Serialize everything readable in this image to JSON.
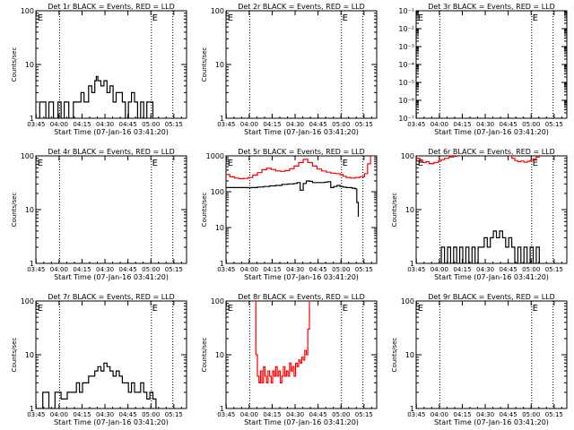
{
  "figure": {
    "xtick_labels": [
      "03:45",
      "04:00",
      "04:15",
      "04:30",
      "04:45",
      "05:00",
      "05:15"
    ],
    "xlabel": "Start Time (07-Jan-16 03:41:20)",
    "ylabel": "Counts/sec"
  },
  "chart_data": [
    {
      "type": "line",
      "title": "Det 1r BLACK = Events, RED = LLD",
      "xlabel": "Start Time (07-Jan-16 03:41:20)",
      "ylabel": "Counts/sec",
      "ylog": true,
      "ylim": [
        1,
        100
      ],
      "ytick_labels": [
        "1",
        "10",
        "100"
      ],
      "xlim_min": [
        3.5,
        102
      ],
      "vlines_min": [
        19,
        79,
        93
      ],
      "markers": [
        {
          "label": "E",
          "x_min": 4.5
        },
        {
          "label": "E",
          "x_min": 79.5
        }
      ],
      "series": [
        {
          "color": "#000000",
          "x_min": [
            3.5,
            6,
            10,
            12,
            15,
            18,
            20,
            22,
            25,
            28,
            30,
            33,
            35,
            38,
            40,
            42,
            43,
            44,
            46,
            48,
            50,
            52,
            54,
            56,
            58,
            60,
            62,
            64,
            66,
            68,
            70,
            72,
            74,
            76,
            78,
            80
          ],
          "y": [
            1,
            2,
            1,
            2,
            1,
            2,
            1,
            2,
            1,
            2,
            2,
            3,
            2,
            4,
            3,
            5,
            6,
            5,
            4,
            5,
            3,
            4,
            2,
            3,
            3,
            2,
            1,
            2,
            3,
            2,
            1,
            2,
            1,
            2,
            2,
            1
          ]
        }
      ]
    },
    {
      "type": "line",
      "title": "Det 2r BLACK = Events, RED = LLD",
      "xlabel": "Start Time (07-Jan-16 03:41:20)",
      "ylabel": "Counts/sec",
      "ylog": true,
      "ylim": [
        1,
        100
      ],
      "ytick_labels": [
        "1",
        "10",
        "100"
      ],
      "xlim_min": [
        3.5,
        102
      ],
      "vlines_min": [
        19,
        79,
        93
      ],
      "markers": [
        {
          "label": "E",
          "x_min": 4.5
        },
        {
          "label": "E",
          "x_min": 79.5
        }
      ],
      "series": []
    },
    {
      "type": "line",
      "title": "Det 3r BLACK = Events, RED = LLD",
      "xlabel": "Start Time (07-Jan-16 03:41:20)",
      "ylabel": "",
      "ylog": true,
      "ylim": [
        1e-07,
        0.1
      ],
      "ytick_labels": [
        "10⁻⁷",
        "10⁻⁶",
        "10⁻⁵",
        "10⁻⁴",
        "10⁻³",
        "10⁻²",
        "10⁻¹"
      ],
      "xlim_min": [
        3.5,
        102
      ],
      "vlines_min": [
        19,
        79,
        93
      ],
      "markers": [
        {
          "label": "E",
          "x_min": 4.5
        },
        {
          "label": "E",
          "x_min": 79.5
        }
      ],
      "series": []
    },
    {
      "type": "line",
      "title": "Det 4r BLACK = Events, RED = LLD",
      "xlabel": "Start Time (07-Jan-16 03:41:20)",
      "ylabel": "Counts/sec",
      "ylog": true,
      "ylim": [
        1,
        100
      ],
      "ytick_labels": [
        "1",
        "10",
        "100"
      ],
      "xlim_min": [
        3.5,
        102
      ],
      "vlines_min": [
        19,
        79,
        93
      ],
      "markers": [
        {
          "label": "E",
          "x_min": 4.5
        },
        {
          "label": "E",
          "x_min": 79.5
        }
      ],
      "series": []
    },
    {
      "type": "line",
      "title": "Det 5r BLACK = Events, RED = LLD",
      "xlabel": "Start Time (07-Jan-16 03:41:20)",
      "ylabel": "Counts/sec",
      "ylog": true,
      "ylim": [
        1,
        1000
      ],
      "ytick_labels": [
        "1",
        "10",
        "100",
        "1000"
      ],
      "xlim_min": [
        3.5,
        102
      ],
      "vlines_min": [
        19,
        79,
        93
      ],
      "markers": [
        {
          "label": "E",
          "x_min": 4.5
        },
        {
          "label": "E",
          "x_min": 79.5
        }
      ],
      "series": [
        {
          "color": "#ff0000",
          "x_min": [
            3.5,
            6,
            9,
            12,
            15,
            18,
            21,
            24,
            27,
            30,
            33,
            36,
            39,
            42,
            45,
            48,
            51,
            54,
            57,
            60,
            63,
            66,
            69,
            72,
            75,
            78,
            80,
            82,
            85,
            88,
            91,
            94,
            96,
            98,
            100
          ],
          "y": [
            300,
            260,
            240,
            230,
            235,
            250,
            290,
            340,
            410,
            450,
            420,
            380,
            370,
            390,
            440,
            520,
            650,
            800,
            650,
            520,
            430,
            380,
            350,
            330,
            320,
            300,
            270,
            250,
            240,
            250,
            260,
            320,
            600,
            1000,
            1000
          ]
        },
        {
          "color": "#000000",
          "x_min": [
            3.5,
            18,
            20,
            24,
            28,
            32,
            36,
            40,
            44,
            48,
            50,
            52,
            54,
            56,
            58,
            60,
            64,
            68,
            70,
            72,
            74,
            76,
            78,
            80,
            82,
            84,
            86,
            88,
            89,
            90
          ],
          "y": [
            130,
            128,
            130,
            135,
            140,
            145,
            150,
            160,
            165,
            170,
            180,
            110,
            170,
            200,
            195,
            180,
            180,
            185,
            190,
            130,
            140,
            150,
            140,
            135,
            130,
            130,
            125,
            120,
            50,
            20
          ]
        }
      ]
    },
    {
      "type": "line",
      "title": "Det 6r BLACK = Events, RED = LLD",
      "xlabel": "Start Time (07-Jan-16 03:41:20)",
      "ylabel": "Counts/sec",
      "ylog": true,
      "ylim": [
        1,
        100
      ],
      "ytick_labels": [
        "1",
        "10",
        "100"
      ],
      "xlim_min": [
        3.5,
        102
      ],
      "vlines_min": [
        19,
        79,
        93
      ],
      "markers": [
        {
          "label": "E",
          "x_min": 4.5
        },
        {
          "label": "E",
          "x_min": 79.5
        }
      ],
      "series": [
        {
          "color": "#ff0000",
          "x_min": [
            3.5,
            6,
            8,
            10,
            12,
            15,
            18,
            20,
            22,
            25,
            28,
            30
          ],
          "y": [
            90,
            80,
            75,
            78,
            72,
            75,
            80,
            85,
            90,
            95,
            98,
            100
          ]
        },
        {
          "color": "#ff0000",
          "x_min": [
            64,
            66,
            68,
            70,
            72,
            74,
            76,
            78,
            80,
            82,
            84
          ],
          "y": [
            100,
            90,
            82,
            78,
            80,
            76,
            79,
            82,
            88,
            95,
            100
          ]
        },
        {
          "color": "#000000",
          "x_min": [
            17,
            20,
            22,
            24,
            26,
            28,
            30,
            32,
            34,
            36,
            38,
            40,
            42,
            44,
            46,
            48,
            50,
            52,
            54,
            56,
            58,
            60,
            62,
            64,
            66,
            68,
            70,
            72,
            74,
            76,
            78,
            80,
            82,
            84
          ],
          "y": [
            1,
            2,
            1,
            2,
            1,
            2,
            1,
            2,
            1,
            2,
            1,
            2,
            1,
            2,
            2,
            3,
            2,
            3,
            4,
            3,
            4,
            3,
            2,
            3,
            2,
            1,
            2,
            1,
            2,
            1,
            2,
            1,
            2,
            1
          ]
        }
      ]
    },
    {
      "type": "line",
      "title": "Det 7r BLACK = Events, RED = LLD",
      "xlabel": "Start Time (07-Jan-16 03:41:20)",
      "ylabel": "Counts/sec",
      "ylog": true,
      "ylim": [
        1,
        100
      ],
      "ytick_labels": [
        "1",
        "10",
        "100"
      ],
      "xlim_min": [
        3.5,
        102
      ],
      "vlines_min": [
        19,
        79,
        93
      ],
      "markers": [
        {
          "label": "E",
          "x_min": 4.5
        },
        {
          "label": "E",
          "x_min": 79.5
        }
      ],
      "series": [
        {
          "color": "#000000",
          "x_min": [
            3.5,
            8,
            12,
            16,
            20,
            24,
            28,
            30,
            32,
            34,
            36,
            38,
            40,
            42,
            44,
            46,
            48,
            50,
            52,
            54,
            56,
            58,
            60,
            62,
            64,
            66,
            68,
            70,
            72,
            74,
            76,
            78,
            80,
            82
          ],
          "y": [
            1,
            2,
            1,
            2,
            1.5,
            2,
            2,
            3,
            2,
            3,
            3,
            4,
            4,
            5,
            6,
            5,
            7,
            6,
            5,
            4,
            5,
            4,
            3,
            3,
            2,
            3,
            2,
            2,
            3,
            2,
            1.5,
            2,
            1.5,
            1
          ]
        }
      ]
    },
    {
      "type": "line",
      "title": "Det 8r BLACK = Events, RED = LLD",
      "xlabel": "Start Time (07-Jan-16 03:41:20)",
      "ylabel": "Counts/sec",
      "ylog": true,
      "ylim": [
        1,
        100
      ],
      "ytick_labels": [
        "1",
        "10",
        "100"
      ],
      "xlim_min": [
        3.5,
        102
      ],
      "vlines_min": [
        19,
        79,
        93
      ],
      "markers": [
        {
          "label": "E",
          "x_min": 4.5
        },
        {
          "label": "E",
          "x_min": 79.5
        }
      ],
      "series": [
        {
          "color": "#ff0000",
          "x_min": [
            22,
            23,
            24,
            25,
            26,
            27,
            28,
            29,
            30,
            31,
            32,
            33,
            34,
            35,
            36,
            37,
            38,
            39,
            40,
            41,
            42,
            43,
            44,
            45,
            46,
            47,
            48,
            49,
            50,
            51,
            52,
            53,
            54,
            55,
            56,
            57,
            58
          ],
          "y": [
            100,
            10,
            4,
            3,
            5,
            3,
            6,
            4,
            3,
            5,
            4,
            3,
            5,
            4,
            6,
            4,
            5,
            3,
            4,
            6,
            4,
            5,
            4,
            7,
            5,
            6,
            4,
            7,
            6,
            8,
            7,
            9,
            8,
            12,
            10,
            30,
            100
          ]
        }
      ]
    },
    {
      "type": "line",
      "title": "Det 9r BLACK = Events, RED = LLD",
      "xlabel": "Start Time (07-Jan-16 03:41:20)",
      "ylabel": "Counts/sec",
      "ylog": true,
      "ylim": [
        1,
        100
      ],
      "ytick_labels": [
        "1",
        "10",
        "100"
      ],
      "xlim_min": [
        3.5,
        102
      ],
      "vlines_min": [
        19,
        79,
        93
      ],
      "markers": [
        {
          "label": "E",
          "x_min": 4.5
        },
        {
          "label": "E",
          "x_min": 79.5
        }
      ],
      "series": []
    }
  ]
}
